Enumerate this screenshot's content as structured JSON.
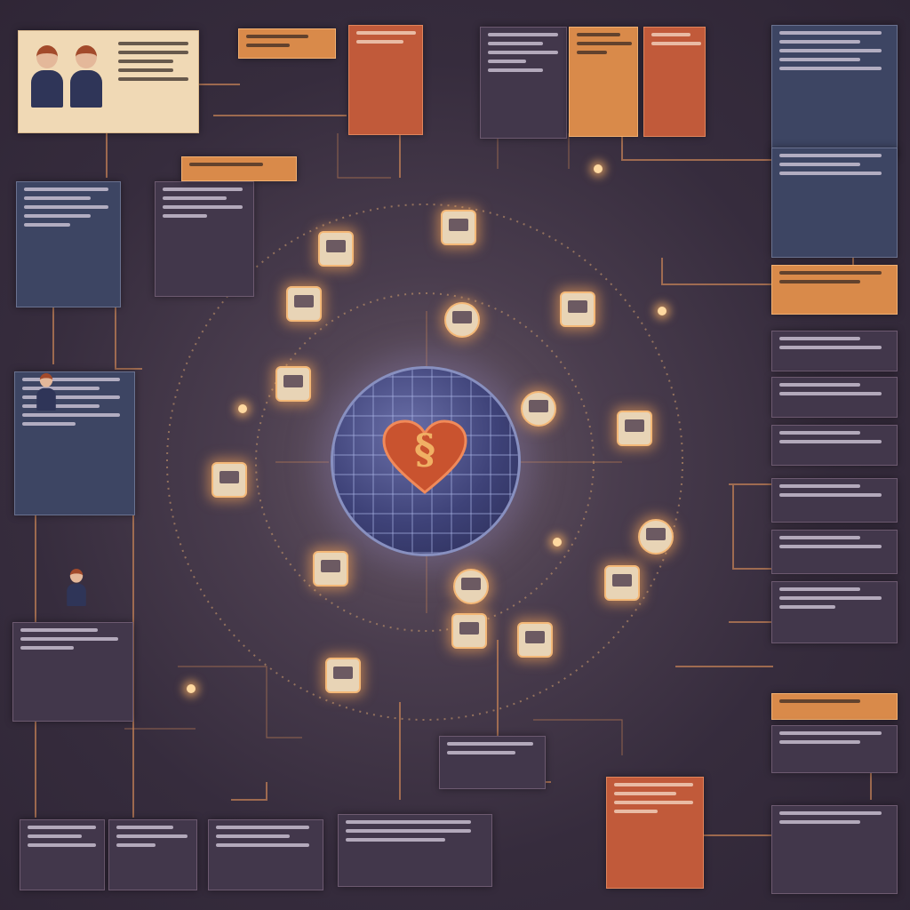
{
  "scene": {
    "description_free": true,
    "palette": {
      "background": "#362c3d",
      "wire": "#c07f55",
      "panel_blue": "#3d4563",
      "panel_orange": "#c15a3a",
      "panel_tan": "#f0d9b5",
      "glow": "#ffb870",
      "globe": "#3e4278",
      "heart": "#c9532f"
    },
    "icons": {
      "center": "heart-globe-icon",
      "nodes": "app-window-icon",
      "people": "person-icon"
    }
  }
}
